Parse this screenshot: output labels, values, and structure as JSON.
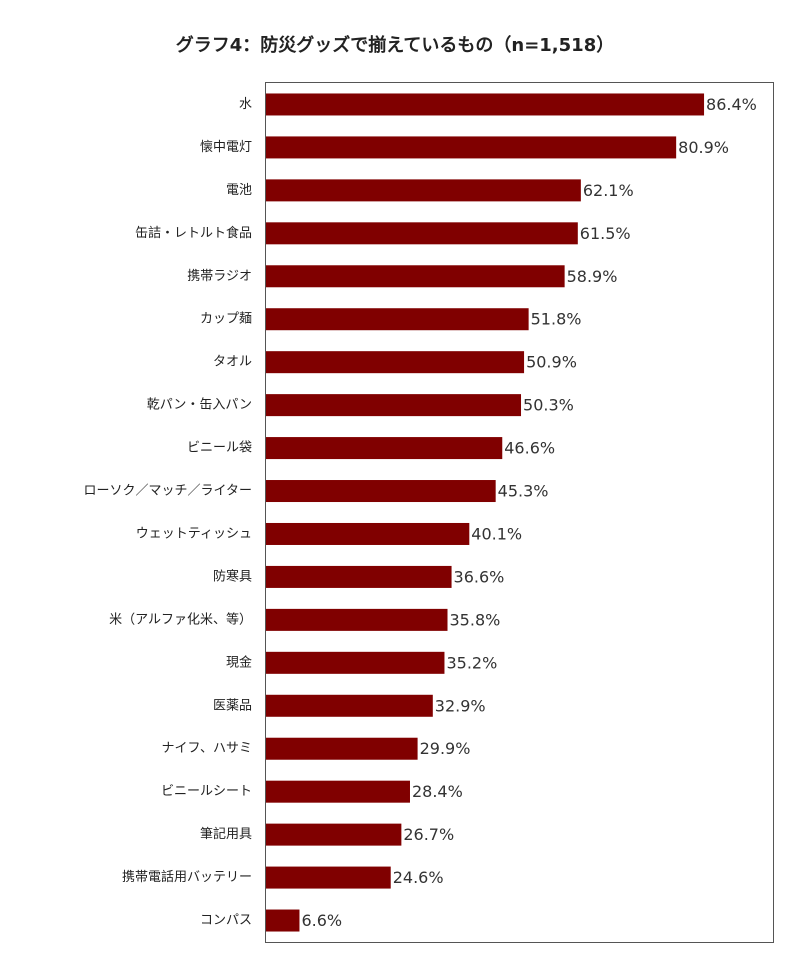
{
  "chart_data": {
    "type": "bar",
    "orientation": "horizontal",
    "title": "グラフ4：防災グッズで揃えているもの（n=1,518）",
    "categories": [
      "水",
      "懐中電灯",
      "電池",
      "缶詰・レトルト食品",
      "携帯ラジオ",
      "カップ麺",
      "タオル",
      "乾パン・缶入パン",
      "ビニール袋",
      "ローソク／マッチ／ライター",
      "ウェットティッシュ",
      "防寒具",
      "米（アルファ化米、等）",
      "現金",
      "医薬品",
      "ナイフ、ハサミ",
      "ビニールシート",
      "筆記用具",
      "携帯電話用バッテリー",
      "コンパス"
    ],
    "values": [
      86.4,
      80.9,
      62.1,
      61.5,
      58.9,
      51.8,
      50.9,
      50.3,
      46.6,
      45.3,
      40.1,
      36.6,
      35.8,
      35.2,
      32.9,
      29.9,
      28.4,
      26.7,
      24.6,
      6.6
    ],
    "value_labels": [
      "86.4%",
      "80.9%",
      "62.1%",
      "61.5%",
      "58.9%",
      "51.8%",
      "50.9%",
      "50.3%",
      "46.6%",
      "45.3%",
      "40.1%",
      "36.6%",
      "35.8%",
      "35.2%",
      "32.9%",
      "29.9%",
      "28.4%",
      "26.7%",
      "24.6%",
      "6.6%"
    ],
    "color": "#800000",
    "xlim": [
      0,
      100
    ]
  }
}
